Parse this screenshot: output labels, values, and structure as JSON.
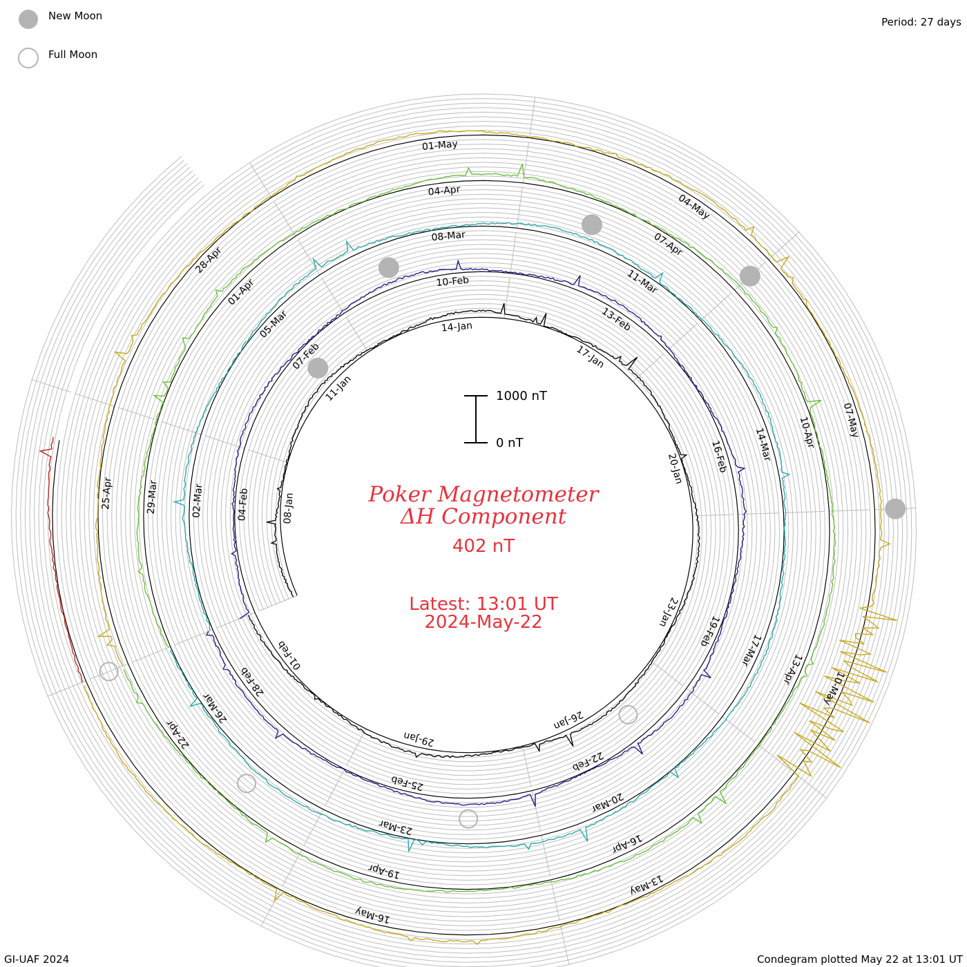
{
  "title": {
    "line1": "Poker Magnetometer",
    "line2": "ΔH Component",
    "value": "402 nT",
    "latest": "Latest: 13:01 UT",
    "date": "2024-May-22"
  },
  "period_label": "Period: 27 days",
  "footer_left": "GI-UAF 2024",
  "footer_right": "Condegram plotted May 22 at 13:01 UT",
  "legend": {
    "new_moon": "New Moon",
    "full_moon": "Full Moon"
  },
  "scale_bar": {
    "top": "1000 nT",
    "bottom": "0 nT"
  },
  "colors": {
    "title": "#e8323c",
    "grid": "#bdbdbd",
    "baseline": "#000000",
    "new_moon": "#b4b4b4",
    "full_moon": "#b4b4b4"
  },
  "chart_data": {
    "type": "line",
    "subtype": "condegram-spiral",
    "period_days": 27,
    "units": "nT",
    "scale": [
      0,
      1000
    ],
    "series": [
      {
        "start": "2024-01-06",
        "color": "#0a0a0a",
        "date_labels": [
          "08-Jan",
          "11-Jan",
          "14-Jan",
          "17-Jan",
          "20-Jan",
          "23-Jan",
          "26-Jan",
          "29-Jan",
          "01-Feb"
        ]
      },
      {
        "start": "2024-02-02",
        "color": "#1e1e8c",
        "date_labels": [
          "04-Feb",
          "07-Feb",
          "10-Feb",
          "13-Feb",
          "16-Feb",
          "19-Feb",
          "22-Feb",
          "25-Feb",
          "28-Feb"
        ]
      },
      {
        "start": "2024-02-29",
        "color": "#2aa8aa",
        "date_labels": [
          "02-Mar",
          "05-Mar",
          "08-Mar",
          "11-Mar",
          "14-Mar",
          "17-Mar",
          "20-Mar",
          "23-Mar",
          "26-Mar"
        ]
      },
      {
        "start": "2024-03-27",
        "color": "#6abf3c",
        "date_labels": [
          "29-Mar",
          "01-Apr",
          "04-Apr",
          "07-Apr",
          "10-Apr",
          "13-Apr",
          "16-Apr",
          "19-Apr",
          "22-Apr"
        ]
      },
      {
        "start": "2024-04-23",
        "color": "#c9a81e",
        "date_labels": [
          "25-Apr",
          "28-Apr",
          "01-May",
          "04-May",
          "07-May",
          "10-May",
          "13-May",
          "16-May"
        ]
      },
      {
        "start": "2024-05-20",
        "color": "#c0281e",
        "date_labels": []
      }
    ],
    "new_moons": [
      "2024-01-11",
      "2024-02-09",
      "2024-03-10",
      "2024-04-08",
      "2024-05-08"
    ],
    "full_moons": [
      "2024-01-25",
      "2024-02-24",
      "2024-03-25",
      "2024-04-23"
    ]
  }
}
